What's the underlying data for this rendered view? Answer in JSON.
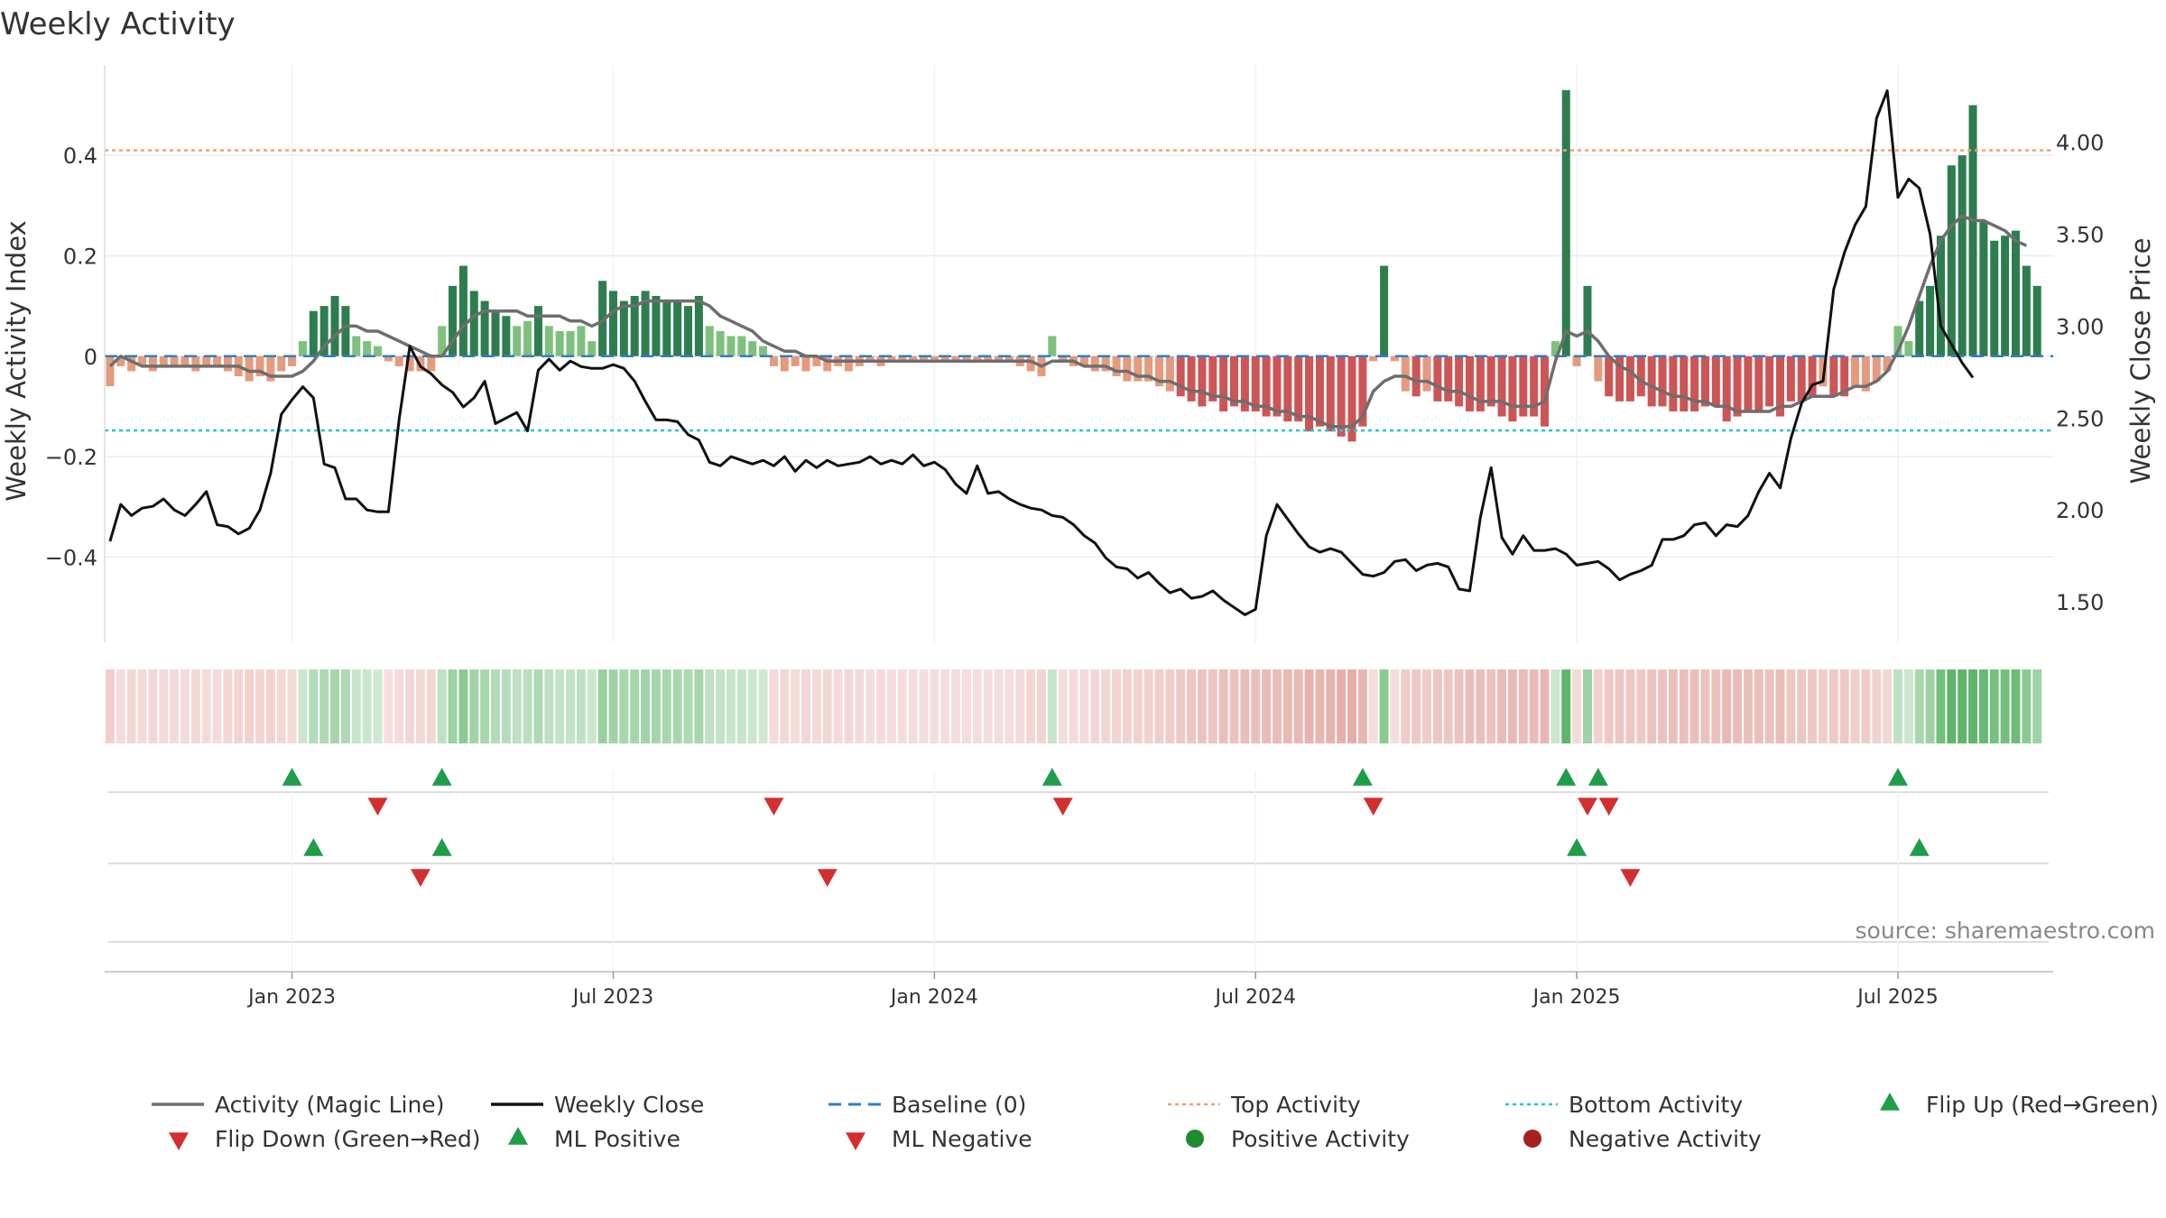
{
  "chart_data": {
    "type": "bar",
    "title": "Weekly Activity",
    "ylabel": "Weekly Activity Index",
    "y2label": "Weekly Close Price",
    "source": "source: sharemaestro.com",
    "ylim": [
      -0.57,
      0.58
    ],
    "y2lim": [
      1.28,
      4.42
    ],
    "yticks": [
      {
        "v": 0.4,
        "label": "0.4"
      },
      {
        "v": 0.2,
        "label": "0.2"
      },
      {
        "v": 0,
        "label": "0"
      },
      {
        "v": -0.2,
        "label": "−0.2"
      },
      {
        "v": -0.4,
        "label": "−0.4"
      }
    ],
    "y2ticks": [
      {
        "v": 4.0,
        "label": "4.00"
      },
      {
        "v": 3.5,
        "label": "3.50"
      },
      {
        "v": 3.0,
        "label": "3.00"
      },
      {
        "v": 2.5,
        "label": "2.50"
      },
      {
        "v": 2.0,
        "label": "2.00"
      },
      {
        "v": 1.5,
        "label": "1.50"
      }
    ],
    "xticks": [
      {
        "week": 17,
        "label": "Jan 2023"
      },
      {
        "week": 47,
        "label": "Jul 2023"
      },
      {
        "week": 77,
        "label": "Jan 2024"
      },
      {
        "week": 107,
        "label": "Jul 2024"
      },
      {
        "week": 137,
        "label": "Jan 2025"
      },
      {
        "week": 167,
        "label": "Jul 2025"
      }
    ],
    "top_activity": 0.41,
    "bottom_activity": -0.148,
    "weeks": 182,
    "activity": [
      -0.06,
      -0.02,
      -0.03,
      -0.02,
      -0.03,
      -0.02,
      -0.02,
      -0.02,
      -0.03,
      -0.02,
      -0.02,
      -0.03,
      -0.04,
      -0.05,
      -0.04,
      -0.05,
      -0.03,
      -0.02,
      0.03,
      0.09,
      0.1,
      0.12,
      0.1,
      0.04,
      0.03,
      0.02,
      -0.01,
      -0.02,
      -0.03,
      -0.03,
      -0.03,
      0.06,
      0.14,
      0.18,
      0.13,
      0.11,
      0.09,
      0.08,
      0.06,
      0.07,
      0.1,
      0.06,
      0.05,
      0.05,
      0.06,
      0.03,
      0.15,
      0.13,
      0.11,
      0.12,
      0.13,
      0.12,
      0.11,
      0.11,
      0.1,
      0.12,
      0.06,
      0.05,
      0.04,
      0.04,
      0.03,
      0.02,
      -0.02,
      -0.03,
      -0.02,
      -0.03,
      -0.02,
      -0.03,
      -0.02,
      -0.03,
      -0.02,
      -0.01,
      -0.02,
      -0.01,
      -0.01,
      -0.01,
      -0.01,
      -0.01,
      -0.01,
      -0.01,
      -0.01,
      -0.01,
      -0.01,
      -0.01,
      -0.01,
      -0.02,
      -0.03,
      -0.04,
      0.04,
      -0.01,
      -0.02,
      -0.02,
      -0.03,
      -0.03,
      -0.04,
      -0.05,
      -0.05,
      -0.05,
      -0.06,
      -0.07,
      -0.08,
      -0.09,
      -0.1,
      -0.09,
      -0.11,
      -0.1,
      -0.11,
      -0.11,
      -0.12,
      -0.12,
      -0.13,
      -0.13,
      -0.15,
      -0.14,
      -0.15,
      -0.16,
      -0.17,
      -0.14,
      -0.01,
      0.18,
      -0.01,
      -0.07,
      -0.08,
      -0.07,
      -0.09,
      -0.09,
      -0.1,
      -0.11,
      -0.11,
      -0.1,
      -0.12,
      -0.13,
      -0.12,
      -0.12,
      -0.14,
      0.03,
      0.53,
      -0.02,
      0.14,
      -0.05,
      -0.08,
      -0.09,
      -0.09,
      -0.08,
      -0.1,
      -0.1,
      -0.11,
      -0.11,
      -0.11,
      -0.1,
      -0.1,
      -0.13,
      -0.12,
      -0.11,
      -0.11,
      -0.1,
      -0.12,
      -0.09,
      -0.09,
      -0.08,
      -0.06,
      -0.08,
      -0.08,
      -0.06,
      -0.07,
      -0.05,
      -0.03,
      0.06,
      0.03,
      0.11,
      0.14,
      0.24,
      0.38,
      0.4,
      0.5,
      0.27,
      0.23,
      0.24,
      0.25,
      0.18,
      0.14
    ],
    "magic_line": [
      -0.02,
      0.0,
      -0.01,
      -0.02,
      -0.02,
      -0.02,
      -0.02,
      -0.02,
      -0.02,
      -0.02,
      -0.02,
      -0.02,
      -0.02,
      -0.03,
      -0.03,
      -0.04,
      -0.04,
      -0.04,
      -0.03,
      -0.01,
      0.02,
      0.04,
      0.06,
      0.06,
      0.05,
      0.05,
      0.04,
      0.03,
      0.02,
      0.01,
      0.0,
      0.0,
      0.03,
      0.06,
      0.08,
      0.09,
      0.09,
      0.09,
      0.09,
      0.08,
      0.08,
      0.08,
      0.08,
      0.07,
      0.07,
      0.06,
      0.07,
      0.09,
      0.1,
      0.1,
      0.11,
      0.11,
      0.11,
      0.11,
      0.11,
      0.11,
      0.1,
      0.08,
      0.07,
      0.06,
      0.05,
      0.03,
      0.02,
      0.01,
      0.01,
      0.0,
      0.0,
      -0.01,
      -0.01,
      -0.01,
      -0.01,
      -0.01,
      -0.01,
      -0.01,
      -0.01,
      -0.01,
      -0.01,
      -0.01,
      -0.01,
      -0.01,
      -0.01,
      -0.01,
      -0.01,
      -0.01,
      -0.01,
      -0.01,
      -0.01,
      -0.02,
      -0.01,
      -0.01,
      -0.01,
      -0.02,
      -0.02,
      -0.02,
      -0.03,
      -0.03,
      -0.04,
      -0.04,
      -0.05,
      -0.05,
      -0.06,
      -0.07,
      -0.07,
      -0.08,
      -0.08,
      -0.09,
      -0.09,
      -0.1,
      -0.1,
      -0.11,
      -0.11,
      -0.12,
      -0.12,
      -0.13,
      -0.14,
      -0.14,
      -0.14,
      -0.12,
      -0.07,
      -0.05,
      -0.04,
      -0.04,
      -0.05,
      -0.05,
      -0.06,
      -0.07,
      -0.07,
      -0.08,
      -0.09,
      -0.09,
      -0.09,
      -0.1,
      -0.1,
      -0.1,
      -0.09,
      -0.01,
      0.05,
      0.04,
      0.05,
      0.03,
      0.0,
      -0.02,
      -0.03,
      -0.05,
      -0.06,
      -0.07,
      -0.08,
      -0.08,
      -0.09,
      -0.09,
      -0.1,
      -0.1,
      -0.11,
      -0.11,
      -0.11,
      -0.11,
      -0.1,
      -0.1,
      -0.09,
      -0.08,
      -0.08,
      -0.08,
      -0.07,
      -0.06,
      -0.06,
      -0.05,
      -0.03,
      0.01,
      0.06,
      0.12,
      0.18,
      0.23,
      0.26,
      0.28,
      0.27,
      0.27,
      0.26,
      0.25,
      0.23,
      0.22
    ],
    "weekly_close": [
      1.83,
      2.03,
      1.97,
      2.01,
      2.02,
      2.06,
      2.0,
      1.97,
      2.03,
      2.1,
      1.92,
      1.91,
      1.87,
      1.9,
      2.0,
      2.2,
      2.52,
      2.6,
      2.67,
      2.61,
      2.25,
      2.23,
      2.06,
      2.06,
      2.0,
      1.99,
      1.99,
      2.49,
      2.89,
      2.78,
      2.74,
      2.68,
      2.64,
      2.56,
      2.61,
      2.7,
      2.47,
      2.5,
      2.53,
      2.43,
      2.76,
      2.82,
      2.76,
      2.81,
      2.78,
      2.77,
      2.77,
      2.79,
      2.77,
      2.7,
      2.59,
      2.49,
      2.49,
      2.48,
      2.41,
      2.38,
      2.26,
      2.24,
      2.29,
      2.27,
      2.25,
      2.27,
      2.24,
      2.29,
      2.21,
      2.27,
      2.23,
      2.27,
      2.24,
      2.25,
      2.26,
      2.29,
      2.25,
      2.27,
      2.25,
      2.3,
      2.24,
      2.26,
      2.22,
      2.14,
      2.09,
      2.24,
      2.09,
      2.1,
      2.06,
      2.03,
      2.01,
      2.0,
      1.97,
      1.96,
      1.92,
      1.86,
      1.82,
      1.74,
      1.69,
      1.68,
      1.63,
      1.66,
      1.6,
      1.55,
      1.57,
      1.52,
      1.53,
      1.56,
      1.51,
      1.47,
      1.43,
      1.46,
      1.86,
      2.03,
      1.95,
      1.87,
      1.8,
      1.77,
      1.79,
      1.77,
      1.71,
      1.65,
      1.64,
      1.66,
      1.72,
      1.73,
      1.67,
      1.7,
      1.71,
      1.69,
      1.57,
      1.56,
      1.96,
      2.23,
      1.85,
      1.76,
      1.86,
      1.78,
      1.78,
      1.79,
      1.76,
      1.7,
      1.71,
      1.72,
      1.68,
      1.62,
      1.65,
      1.67,
      1.7,
      1.84,
      1.84,
      1.86,
      1.92,
      1.93,
      1.86,
      1.92,
      1.91,
      1.97,
      2.1,
      2.2,
      2.12,
      2.39,
      2.58,
      2.68,
      2.7,
      3.2,
      3.4,
      3.55,
      3.65,
      4.13,
      4.28,
      3.7,
      3.8,
      3.75,
      3.5,
      3.0,
      2.9,
      2.8,
      2.72
    ],
    "activity_strip_rows": [
      {
        "row": "flip",
        "events": [
          {
            "week": 17,
            "type": "Flip Up (Red→Green)"
          },
          {
            "week": 25,
            "type": "Flip Down (Green→Red)"
          },
          {
            "week": 31,
            "type": "Flip Up (Red→Green)"
          },
          {
            "week": 62,
            "type": "Flip Down (Green→Red)"
          },
          {
            "week": 88,
            "type": "Flip Up (Red→Green)"
          },
          {
            "week": 89,
            "type": "Flip Down (Green→Red)"
          },
          {
            "week": 117,
            "type": "Flip Up (Red→Green)"
          },
          {
            "week": 118,
            "type": "Flip Down (Green→Red)"
          },
          {
            "week": 136,
            "type": "Flip Up (Red→Green)"
          },
          {
            "week": 138,
            "type": "Flip Down (Green→Red)"
          },
          {
            "week": 139,
            "type": "Flip Up (Red→Green)"
          },
          {
            "week": 140,
            "type": "Flip Down (Green→Red)"
          },
          {
            "week": 167,
            "type": "Flip Up (Red→Green)"
          }
        ]
      },
      {
        "row": "ml",
        "events": [
          {
            "week": 19,
            "type": "ML Positive"
          },
          {
            "week": 29,
            "type": "ML Negative"
          },
          {
            "week": 31,
            "type": "ML Positive"
          },
          {
            "week": 67,
            "type": "ML Negative"
          },
          {
            "week": 137,
            "type": "ML Positive"
          },
          {
            "week": 142,
            "type": "ML Negative"
          },
          {
            "week": 169,
            "type": "ML Positive"
          }
        ]
      }
    ],
    "legend": [
      {
        "label": "Activity (Magic Line)",
        "marker": "line",
        "color": "#6e6e6e"
      },
      {
        "label": "Weekly Close",
        "marker": "line",
        "color": "#111111"
      },
      {
        "label": "Baseline (0)",
        "marker": "dash",
        "color": "#2f7fc1"
      },
      {
        "label": "Top Activity",
        "marker": "dot",
        "color": "#f0a070"
      },
      {
        "label": "Bottom Activity",
        "marker": "dot",
        "color": "#1fc8d8"
      },
      {
        "label": "Flip Up (Red→Green)",
        "marker": "tri-up",
        "color": "#1f9d4a"
      },
      {
        "label": "Flip Down (Green→Red)",
        "marker": "tri-down",
        "color": "#d32f2f"
      },
      {
        "label": "ML Positive",
        "marker": "tri-up",
        "color": "#1f9d4a"
      },
      {
        "label": "ML Negative",
        "marker": "tri-down",
        "color": "#d32f2f"
      },
      {
        "label": "Positive Activity",
        "marker": "circle",
        "color": "#1f8a2e"
      },
      {
        "label": "Negative Activity",
        "marker": "circle",
        "color": "#a52020"
      }
    ],
    "colors": {
      "pos_strong": "#2e7d4f",
      "pos_light": "#80c07f",
      "neg_strong": "#cc5555",
      "neg_light": "#e59a7e",
      "strip_pos": "#5fb56a",
      "strip_neg": "#d98880"
    }
  }
}
